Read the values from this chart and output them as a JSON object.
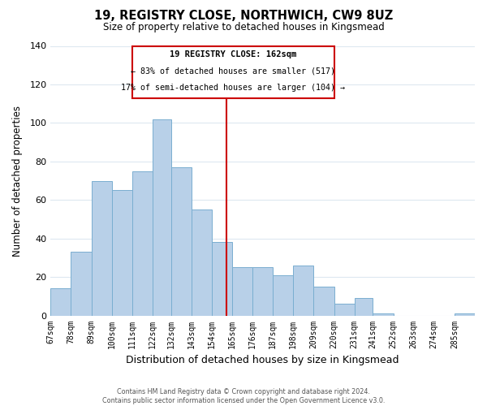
{
  "title": "19, REGISTRY CLOSE, NORTHWICH, CW9 8UZ",
  "subtitle": "Size of property relative to detached houses in Kingsmead",
  "xlabel": "Distribution of detached houses by size in Kingsmead",
  "ylabel": "Number of detached properties",
  "footer_line1": "Contains HM Land Registry data © Crown copyright and database right 2024.",
  "footer_line2": "Contains public sector information licensed under the Open Government Licence v3.0.",
  "bin_labels": [
    "67sqm",
    "78sqm",
    "89sqm",
    "100sqm",
    "111sqm",
    "122sqm",
    "132sqm",
    "143sqm",
    "154sqm",
    "165sqm",
    "176sqm",
    "187sqm",
    "198sqm",
    "209sqm",
    "220sqm",
    "231sqm",
    "241sqm",
    "252sqm",
    "263sqm",
    "274sqm",
    "285sqm"
  ],
  "bar_heights": [
    14,
    33,
    70,
    65,
    75,
    102,
    77,
    55,
    38,
    25,
    25,
    21,
    26,
    15,
    6,
    9,
    1,
    0,
    0,
    0,
    1
  ],
  "bar_color": "#b8d0e8",
  "bar_edge_color": "#7aaed0",
  "grid_color": "#dde8f0",
  "property_line_x": 162,
  "property_line_color": "#cc0000",
  "annotation_title": "19 REGISTRY CLOSE: 162sqm",
  "annotation_line1": "← 83% of detached houses are smaller (517)",
  "annotation_line2": "17% of semi-detached houses are larger (104) →",
  "annotation_box_color": "#ffffff",
  "annotation_box_edge_color": "#cc0000",
  "ylim": [
    0,
    140
  ],
  "yticks": [
    0,
    20,
    40,
    60,
    80,
    100,
    120,
    140
  ],
  "bin_edges": [
    67,
    78,
    89,
    100,
    111,
    122,
    132,
    143,
    154,
    165,
    176,
    187,
    198,
    209,
    220,
    231,
    241,
    252,
    263,
    274,
    285,
    296
  ]
}
